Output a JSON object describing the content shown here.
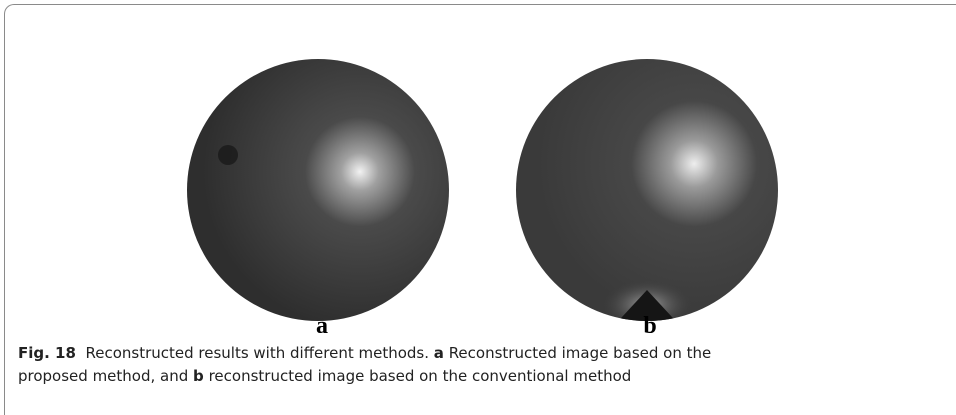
{
  "figure": {
    "panels": [
      {
        "label": "a"
      },
      {
        "label": "b"
      }
    ]
  },
  "caption": {
    "number": "Fig. 18",
    "parts": [
      "Reconstructed results with different methods.",
      "a",
      "Reconstructed image based on the proposed method, and",
      "b",
      "reconstructed image based on the conventional method"
    ]
  }
}
